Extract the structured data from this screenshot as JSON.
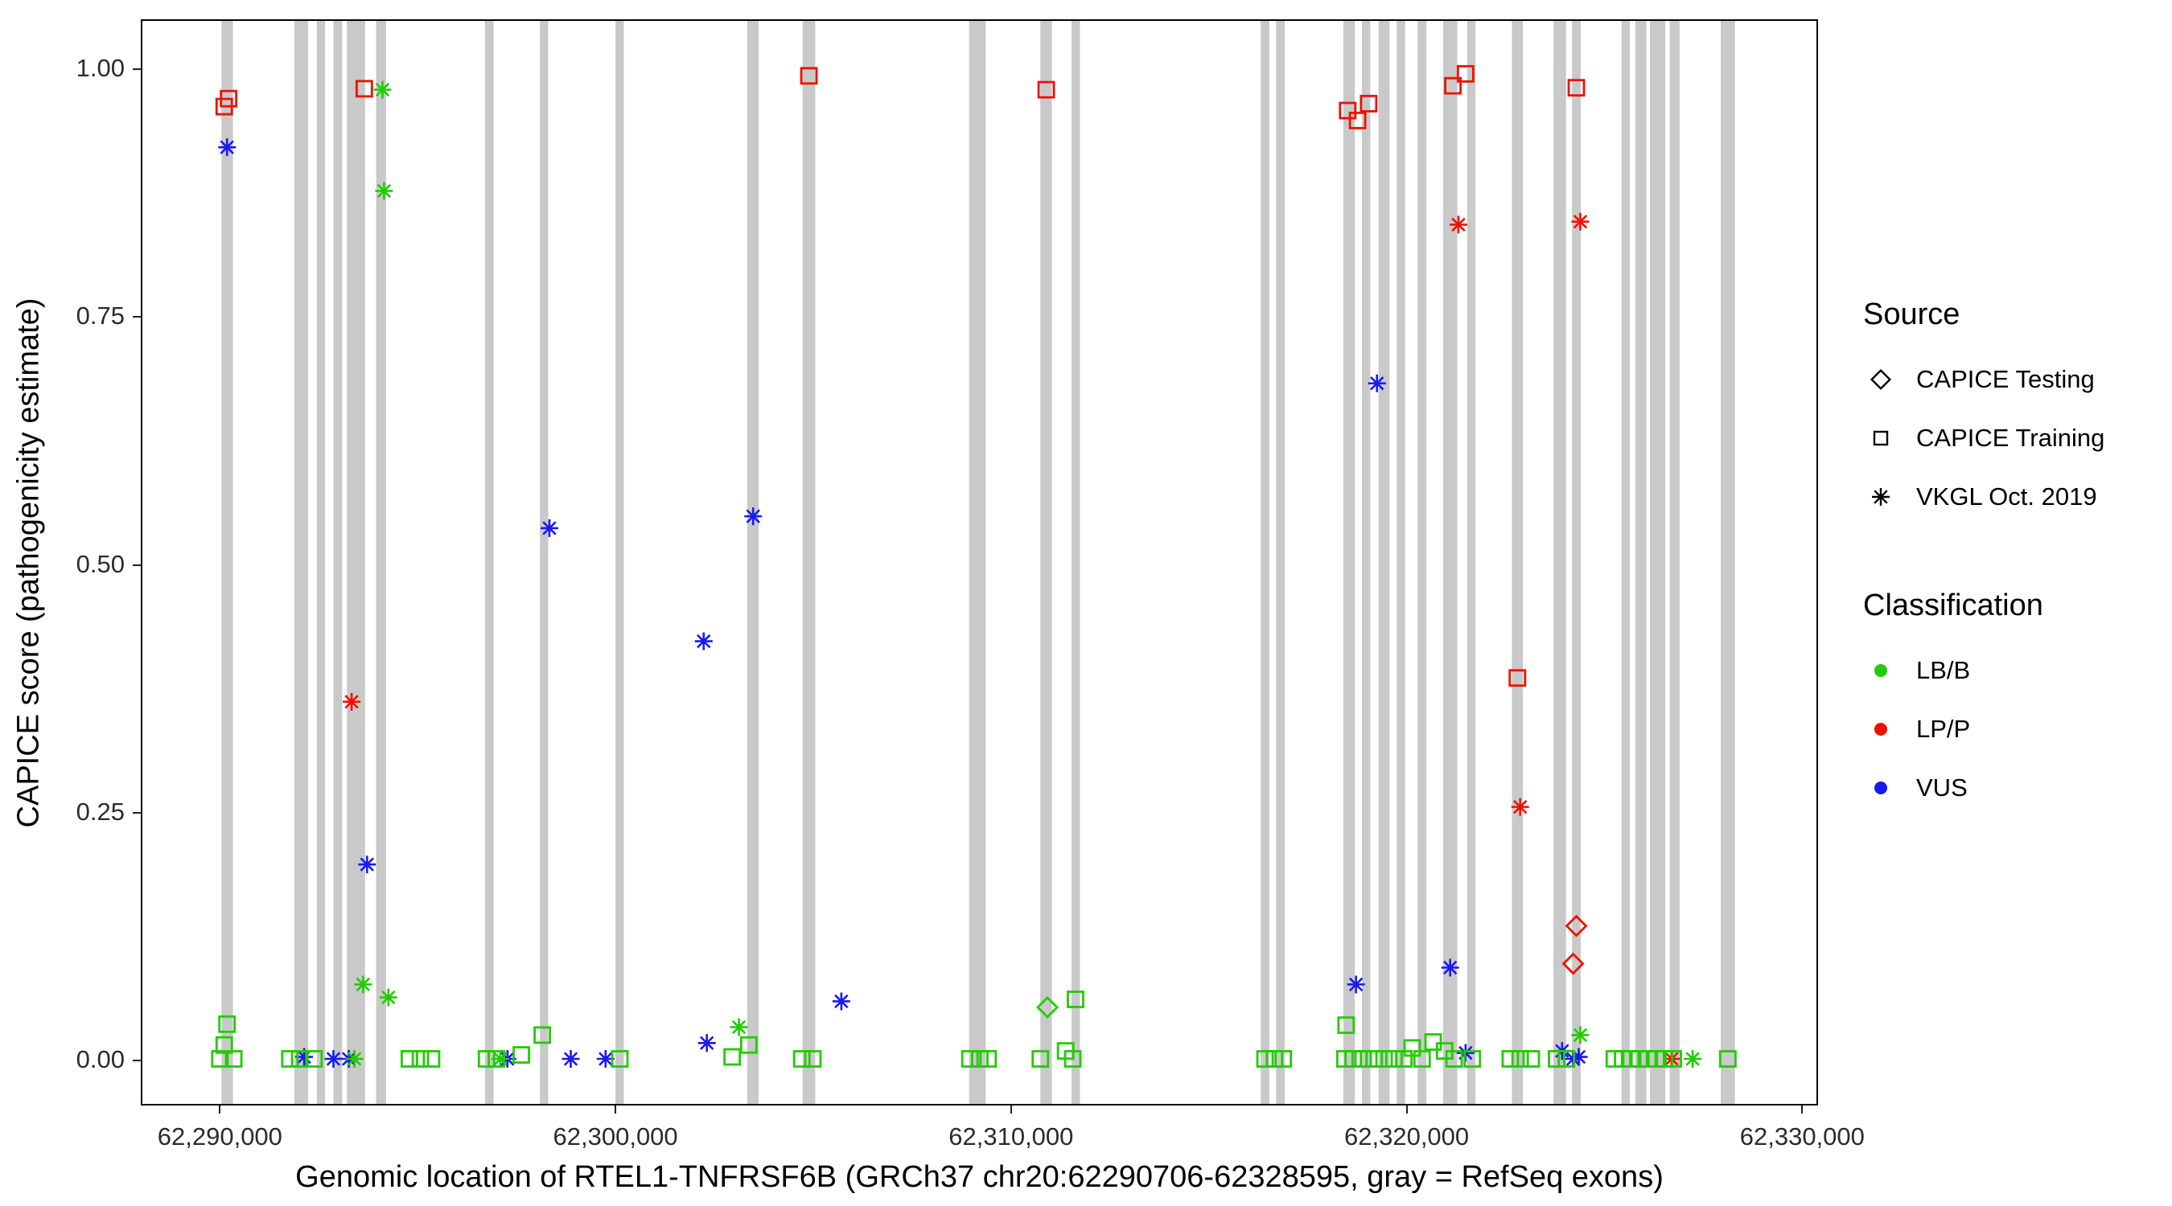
{
  "figure": {
    "background": "#ffffff",
    "panel_border": "#000000",
    "exon_color": "#c9c9c9",
    "tick_color": "#222222"
  },
  "chart_data": {
    "type": "scatter",
    "title": "",
    "xlabel": "Genomic location of RTEL1-TNFRSF6B (GRCh37 chr20:62290706-62328595, gray = RefSeq exons)",
    "ylabel": "CAPICE score (pathogenicity estimate)",
    "xlim": [
      62288000,
      62330400
    ],
    "ylim": [
      -0.045,
      1.05
    ],
    "grid": false,
    "x_ticks": [
      {
        "value": 62290000,
        "label": "62,290,000"
      },
      {
        "value": 62300000,
        "label": "62,300,000"
      },
      {
        "value": 62310000,
        "label": "62,310,000"
      },
      {
        "value": 62320000,
        "label": "62,320,000"
      },
      {
        "value": 62330000,
        "label": "62,330,000"
      }
    ],
    "y_ticks": [
      {
        "value": 0.0,
        "label": "0.00"
      },
      {
        "value": 0.25,
        "label": "0.25"
      },
      {
        "value": 0.5,
        "label": "0.50"
      },
      {
        "value": 0.75,
        "label": "0.75"
      },
      {
        "value": 1.0,
        "label": "1.00"
      }
    ],
    "legend": {
      "position": "right",
      "source_title": "Source",
      "sources": [
        {
          "key": "testing",
          "label": "CAPICE Testing",
          "shape": "diamond"
        },
        {
          "key": "training",
          "label": "CAPICE Training",
          "shape": "square"
        },
        {
          "key": "vkgl",
          "label": "VKGL Oct. 2019",
          "shape": "asterisk"
        }
      ],
      "classification_title": "Classification",
      "classes": [
        {
          "key": "lbb",
          "label": "LB/B",
          "color": "#21cc00"
        },
        {
          "key": "lpp",
          "label": "LP/P",
          "color": "#ee1100"
        },
        {
          "key": "vus",
          "label": "VUS",
          "color": "#1a1aee"
        }
      ]
    },
    "exons": [
      [
        62290040,
        62290330
      ],
      [
        62291880,
        62292230
      ],
      [
        62292450,
        62292660
      ],
      [
        62292870,
        62293090
      ],
      [
        62293210,
        62293670
      ],
      [
        62293950,
        62294200
      ],
      [
        62296700,
        62296920
      ],
      [
        62298090,
        62298300
      ],
      [
        62300000,
        62300210
      ],
      [
        62303330,
        62303620
      ],
      [
        62304730,
        62305050
      ],
      [
        62308940,
        62309360
      ],
      [
        62310740,
        62311030
      ],
      [
        62311530,
        62311740
      ],
      [
        62316310,
        62316530
      ],
      [
        62316700,
        62316920
      ],
      [
        62318400,
        62318690
      ],
      [
        62318870,
        62319080
      ],
      [
        62319290,
        62319570
      ],
      [
        62319750,
        62319960
      ],
      [
        62320280,
        62320500
      ],
      [
        62320920,
        62321280
      ],
      [
        62321530,
        62321740
      ],
      [
        62322660,
        62322940
      ],
      [
        62323710,
        62324030
      ],
      [
        62324180,
        62324400
      ],
      [
        62325430,
        62325640
      ],
      [
        62325780,
        62326060
      ],
      [
        62326150,
        62326540
      ],
      [
        62326650,
        62326900
      ],
      [
        62327940,
        62328300
      ]
    ],
    "points": [
      [
        62290110,
        0.962,
        "training",
        "lpp"
      ],
      [
        62290220,
        0.97,
        "training",
        "lpp"
      ],
      [
        62293650,
        0.98,
        "training",
        "lpp"
      ],
      [
        62304890,
        0.993,
        "training",
        "lpp"
      ],
      [
        62310890,
        0.979,
        "training",
        "lpp"
      ],
      [
        62318510,
        0.958,
        "training",
        "lpp"
      ],
      [
        62318760,
        0.948,
        "training",
        "lpp"
      ],
      [
        62319040,
        0.965,
        "training",
        "lpp"
      ],
      [
        62321170,
        0.983,
        "training",
        "lpp"
      ],
      [
        62321490,
        0.995,
        "training",
        "lpp"
      ],
      [
        62324290,
        0.981,
        "training",
        "lpp"
      ],
      [
        62322800,
        0.386,
        "training",
        "lpp"
      ],
      [
        62293330,
        0.362,
        "vkgl",
        "lpp"
      ],
      [
        62321310,
        0.843,
        "vkgl",
        "lpp"
      ],
      [
        62324390,
        0.846,
        "vkgl",
        "lpp"
      ],
      [
        62322870,
        0.256,
        "vkgl",
        "lpp"
      ],
      [
        62326700,
        0.002,
        "vkgl",
        "lpp"
      ],
      [
        62324290,
        0.136,
        "testing",
        "lpp"
      ],
      [
        62324210,
        0.098,
        "testing",
        "lpp"
      ],
      [
        62290180,
        0.921,
        "vkgl",
        "vus"
      ],
      [
        62293720,
        0.198,
        "vkgl",
        "vus"
      ],
      [
        62298330,
        0.537,
        "vkgl",
        "vus"
      ],
      [
        62302230,
        0.423,
        "vkgl",
        "vus"
      ],
      [
        62303480,
        0.549,
        "vkgl",
        "vus"
      ],
      [
        62305710,
        0.06,
        "vkgl",
        "vus"
      ],
      [
        62302310,
        0.018,
        "vkgl",
        "vus"
      ],
      [
        62319250,
        0.683,
        "vkgl",
        "vus"
      ],
      [
        62318720,
        0.077,
        "vkgl",
        "vus"
      ],
      [
        62321100,
        0.094,
        "vkgl",
        "vus"
      ],
      [
        62292130,
        0.004,
        "vkgl",
        "vus"
      ],
      [
        62292870,
        0.002,
        "vkgl",
        "vus"
      ],
      [
        62293260,
        0.002,
        "vkgl",
        "vus"
      ],
      [
        62297270,
        0.002,
        "vkgl",
        "vus"
      ],
      [
        62298870,
        0.002,
        "vkgl",
        "vus"
      ],
      [
        62299750,
        0.002,
        "vkgl",
        "vus"
      ],
      [
        62321490,
        0.008,
        "vkgl",
        "vus"
      ],
      [
        62323930,
        0.01,
        "vkgl",
        "vus"
      ],
      [
        62324210,
        0.002,
        "vkgl",
        "vus"
      ],
      [
        62324350,
        0.004,
        "vkgl",
        "vus"
      ],
      [
        62294110,
        0.979,
        "vkgl",
        "lbb"
      ],
      [
        62294150,
        0.877,
        "vkgl",
        "lbb"
      ],
      [
        62293620,
        0.077,
        "vkgl",
        "lbb"
      ],
      [
        62294260,
        0.064,
        "vkgl",
        "lbb"
      ],
      [
        62303120,
        0.034,
        "vkgl",
        "lbb"
      ],
      [
        62293400,
        0.002,
        "vkgl",
        "lbb"
      ],
      [
        62297090,
        0.002,
        "vkgl",
        "lbb"
      ],
      [
        62324390,
        0.026,
        "vkgl",
        "lbb"
      ],
      [
        62327230,
        0.002,
        "vkgl",
        "lbb"
      ],
      [
        62310920,
        0.054,
        "testing",
        "lbb"
      ],
      [
        62290180,
        0.037,
        "training",
        "lbb"
      ],
      [
        62290110,
        0.016,
        "training",
        "lbb"
      ],
      [
        62290000,
        0.002,
        "training",
        "lbb"
      ],
      [
        62290350,
        0.002,
        "training",
        "lbb"
      ],
      [
        62291770,
        0.002,
        "training",
        "lbb"
      ],
      [
        62292020,
        0.002,
        "training",
        "lbb"
      ],
      [
        62292380,
        0.002,
        "training",
        "lbb"
      ],
      [
        62294790,
        0.002,
        "training",
        "lbb"
      ],
      [
        62295070,
        0.002,
        "training",
        "lbb"
      ],
      [
        62295350,
        0.002,
        "training",
        "lbb"
      ],
      [
        62296740,
        0.002,
        "training",
        "lbb"
      ],
      [
        62296990,
        0.002,
        "training",
        "lbb"
      ],
      [
        62297620,
        0.006,
        "training",
        "lbb"
      ],
      [
        62298150,
        0.026,
        "training",
        "lbb"
      ],
      [
        62300110,
        0.002,
        "training",
        "lbb"
      ],
      [
        62302950,
        0.004,
        "training",
        "lbb"
      ],
      [
        62303370,
        0.016,
        "training",
        "lbb"
      ],
      [
        62304710,
        0.002,
        "training",
        "lbb"
      ],
      [
        62304990,
        0.002,
        "training",
        "lbb"
      ],
      [
        62308960,
        0.002,
        "training",
        "lbb"
      ],
      [
        62309210,
        0.002,
        "training",
        "lbb"
      ],
      [
        62309420,
        0.002,
        "training",
        "lbb"
      ],
      [
        62310740,
        0.002,
        "training",
        "lbb"
      ],
      [
        62311380,
        0.01,
        "training",
        "lbb"
      ],
      [
        62311560,
        0.002,
        "training",
        "lbb"
      ],
      [
        62311630,
        0.062,
        "training",
        "lbb"
      ],
      [
        62316420,
        0.002,
        "training",
        "lbb"
      ],
      [
        62316660,
        0.002,
        "training",
        "lbb"
      ],
      [
        62316880,
        0.002,
        "training",
        "lbb"
      ],
      [
        62318470,
        0.036,
        "training",
        "lbb"
      ],
      [
        62318440,
        0.002,
        "training",
        "lbb"
      ],
      [
        62318650,
        0.002,
        "training",
        "lbb"
      ],
      [
        62318900,
        0.002,
        "training",
        "lbb"
      ],
      [
        62319180,
        0.002,
        "training",
        "lbb"
      ],
      [
        62319430,
        0.002,
        "training",
        "lbb"
      ],
      [
        62319680,
        0.002,
        "training",
        "lbb"
      ],
      [
        62319930,
        0.002,
        "training",
        "lbb"
      ],
      [
        62320140,
        0.013,
        "training",
        "lbb"
      ],
      [
        62320390,
        0.002,
        "training",
        "lbb"
      ],
      [
        62320670,
        0.019,
        "training",
        "lbb"
      ],
      [
        62320960,
        0.01,
        "training",
        "lbb"
      ],
      [
        62321200,
        0.002,
        "training",
        "lbb"
      ],
      [
        62321660,
        0.002,
        "training",
        "lbb"
      ],
      [
        62322620,
        0.002,
        "training",
        "lbb"
      ],
      [
        62322870,
        0.002,
        "training",
        "lbb"
      ],
      [
        62323150,
        0.002,
        "training",
        "lbb"
      ],
      [
        62323790,
        0.002,
        "training",
        "lbb"
      ],
      [
        62324040,
        0.002,
        "training",
        "lbb"
      ],
      [
        62325250,
        0.002,
        "training",
        "lbb"
      ],
      [
        62325460,
        0.002,
        "training",
        "lbb"
      ],
      [
        62325670,
        0.002,
        "training",
        "lbb"
      ],
      [
        62325880,
        0.002,
        "training",
        "lbb"
      ],
      [
        62326100,
        0.002,
        "training",
        "lbb"
      ],
      [
        62326310,
        0.002,
        "training",
        "lbb"
      ],
      [
        62326520,
        0.002,
        "training",
        "lbb"
      ],
      [
        62326740,
        0.002,
        "training",
        "lbb"
      ],
      [
        62328120,
        0.002,
        "training",
        "lbb"
      ]
    ]
  }
}
